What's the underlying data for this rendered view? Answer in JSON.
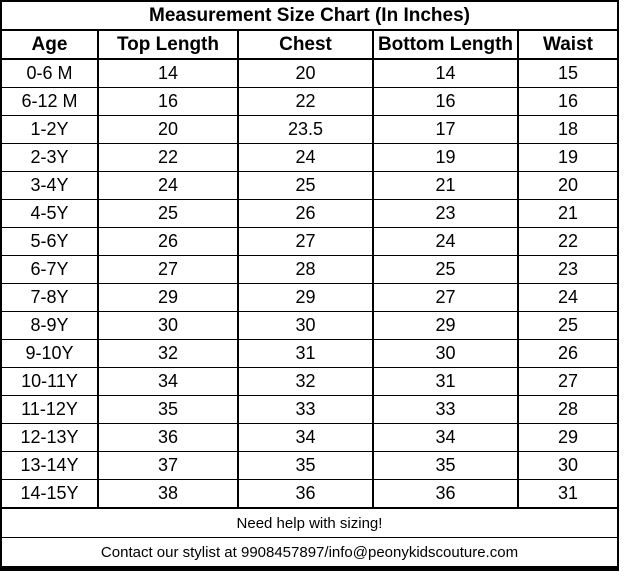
{
  "page": {
    "background_color": "#ffffff",
    "text_color": "#000000",
    "border_color": "#000000"
  },
  "chart_data": {
    "type": "table",
    "title": "Measurement Size Chart (In Inches)",
    "columns": [
      "Age",
      "Top Length",
      "Chest",
      "Bottom Length",
      "Waist"
    ],
    "rows": [
      [
        "0-6 M",
        "14",
        "20",
        "14",
        "15"
      ],
      [
        "6-12 M",
        "16",
        "22",
        "16",
        "16"
      ],
      [
        "1-2Y",
        "20",
        "23.5",
        "17",
        "18"
      ],
      [
        "2-3Y",
        "22",
        "24",
        "19",
        "19"
      ],
      [
        "3-4Y",
        "24",
        "25",
        "21",
        "20"
      ],
      [
        "4-5Y",
        "25",
        "26",
        "23",
        "21"
      ],
      [
        "5-6Y",
        "26",
        "27",
        "24",
        "22"
      ],
      [
        "6-7Y",
        "27",
        "28",
        "25",
        "23"
      ],
      [
        "7-8Y",
        "29",
        "29",
        "27",
        "24"
      ],
      [
        "8-9Y",
        "30",
        "30",
        "29",
        "25"
      ],
      [
        "9-10Y",
        "32",
        "31",
        "30",
        "26"
      ],
      [
        "10-11Y",
        "34",
        "32",
        "31",
        "27"
      ],
      [
        "11-12Y",
        "35",
        "33",
        "33",
        "28"
      ],
      [
        "12-13Y",
        "36",
        "34",
        "34",
        "29"
      ],
      [
        "13-14Y",
        "37",
        "35",
        "35",
        "30"
      ],
      [
        "14-15Y",
        "38",
        "36",
        "36",
        "31"
      ]
    ],
    "footer": {
      "help_text": "Need help with sizing!",
      "contact_text": "Contact our stylist at 9908457897/info@peonykidscouture.com"
    },
    "layout_hints": {
      "units": "inches",
      "grid": "on",
      "header_bold": true
    }
  }
}
